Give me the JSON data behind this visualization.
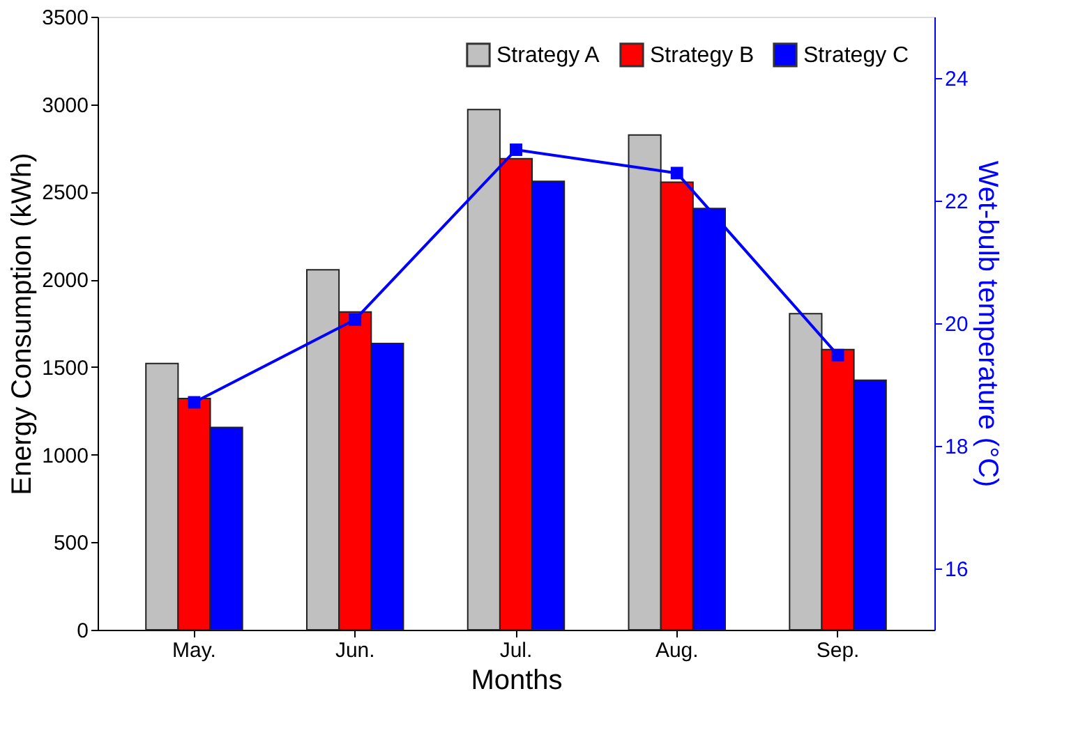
{
  "chart_data": {
    "type": "bar",
    "xlabel": "Months",
    "ylabel": "Energy Consumption (kWh)",
    "y2label": "Wet-bulb temperature (°C)",
    "categories": [
      "May.",
      "Jun.",
      "Jul.",
      "Aug.",
      "Sep."
    ],
    "series": [
      {
        "name": "Strategy A",
        "color": "#c0c0c0",
        "values": [
          1520,
          2055,
          2970,
          2825,
          1805
        ]
      },
      {
        "name": "Strategy B",
        "color": "#ff0000",
        "values": [
          1320,
          1815,
          2690,
          2555,
          1600
        ]
      },
      {
        "name": "Strategy C",
        "color": "#0000ff",
        "values": [
          1155,
          1635,
          2560,
          2405,
          1425
        ]
      },
      {
        "type": "line",
        "axis": "y2",
        "color": "#0000ff",
        "marker": "square",
        "values": [
          18.71,
          20.06,
          22.83,
          22.45,
          19.48
        ]
      }
    ],
    "ylim": [
      0,
      3500
    ],
    "yticks": [
      0,
      500,
      1000,
      1500,
      2000,
      2500,
      3000,
      3500
    ],
    "y2lim": [
      15,
      25
    ],
    "y2ticks": [
      16,
      18,
      20,
      22,
      24
    ],
    "legend": "top right",
    "grid": false
  }
}
